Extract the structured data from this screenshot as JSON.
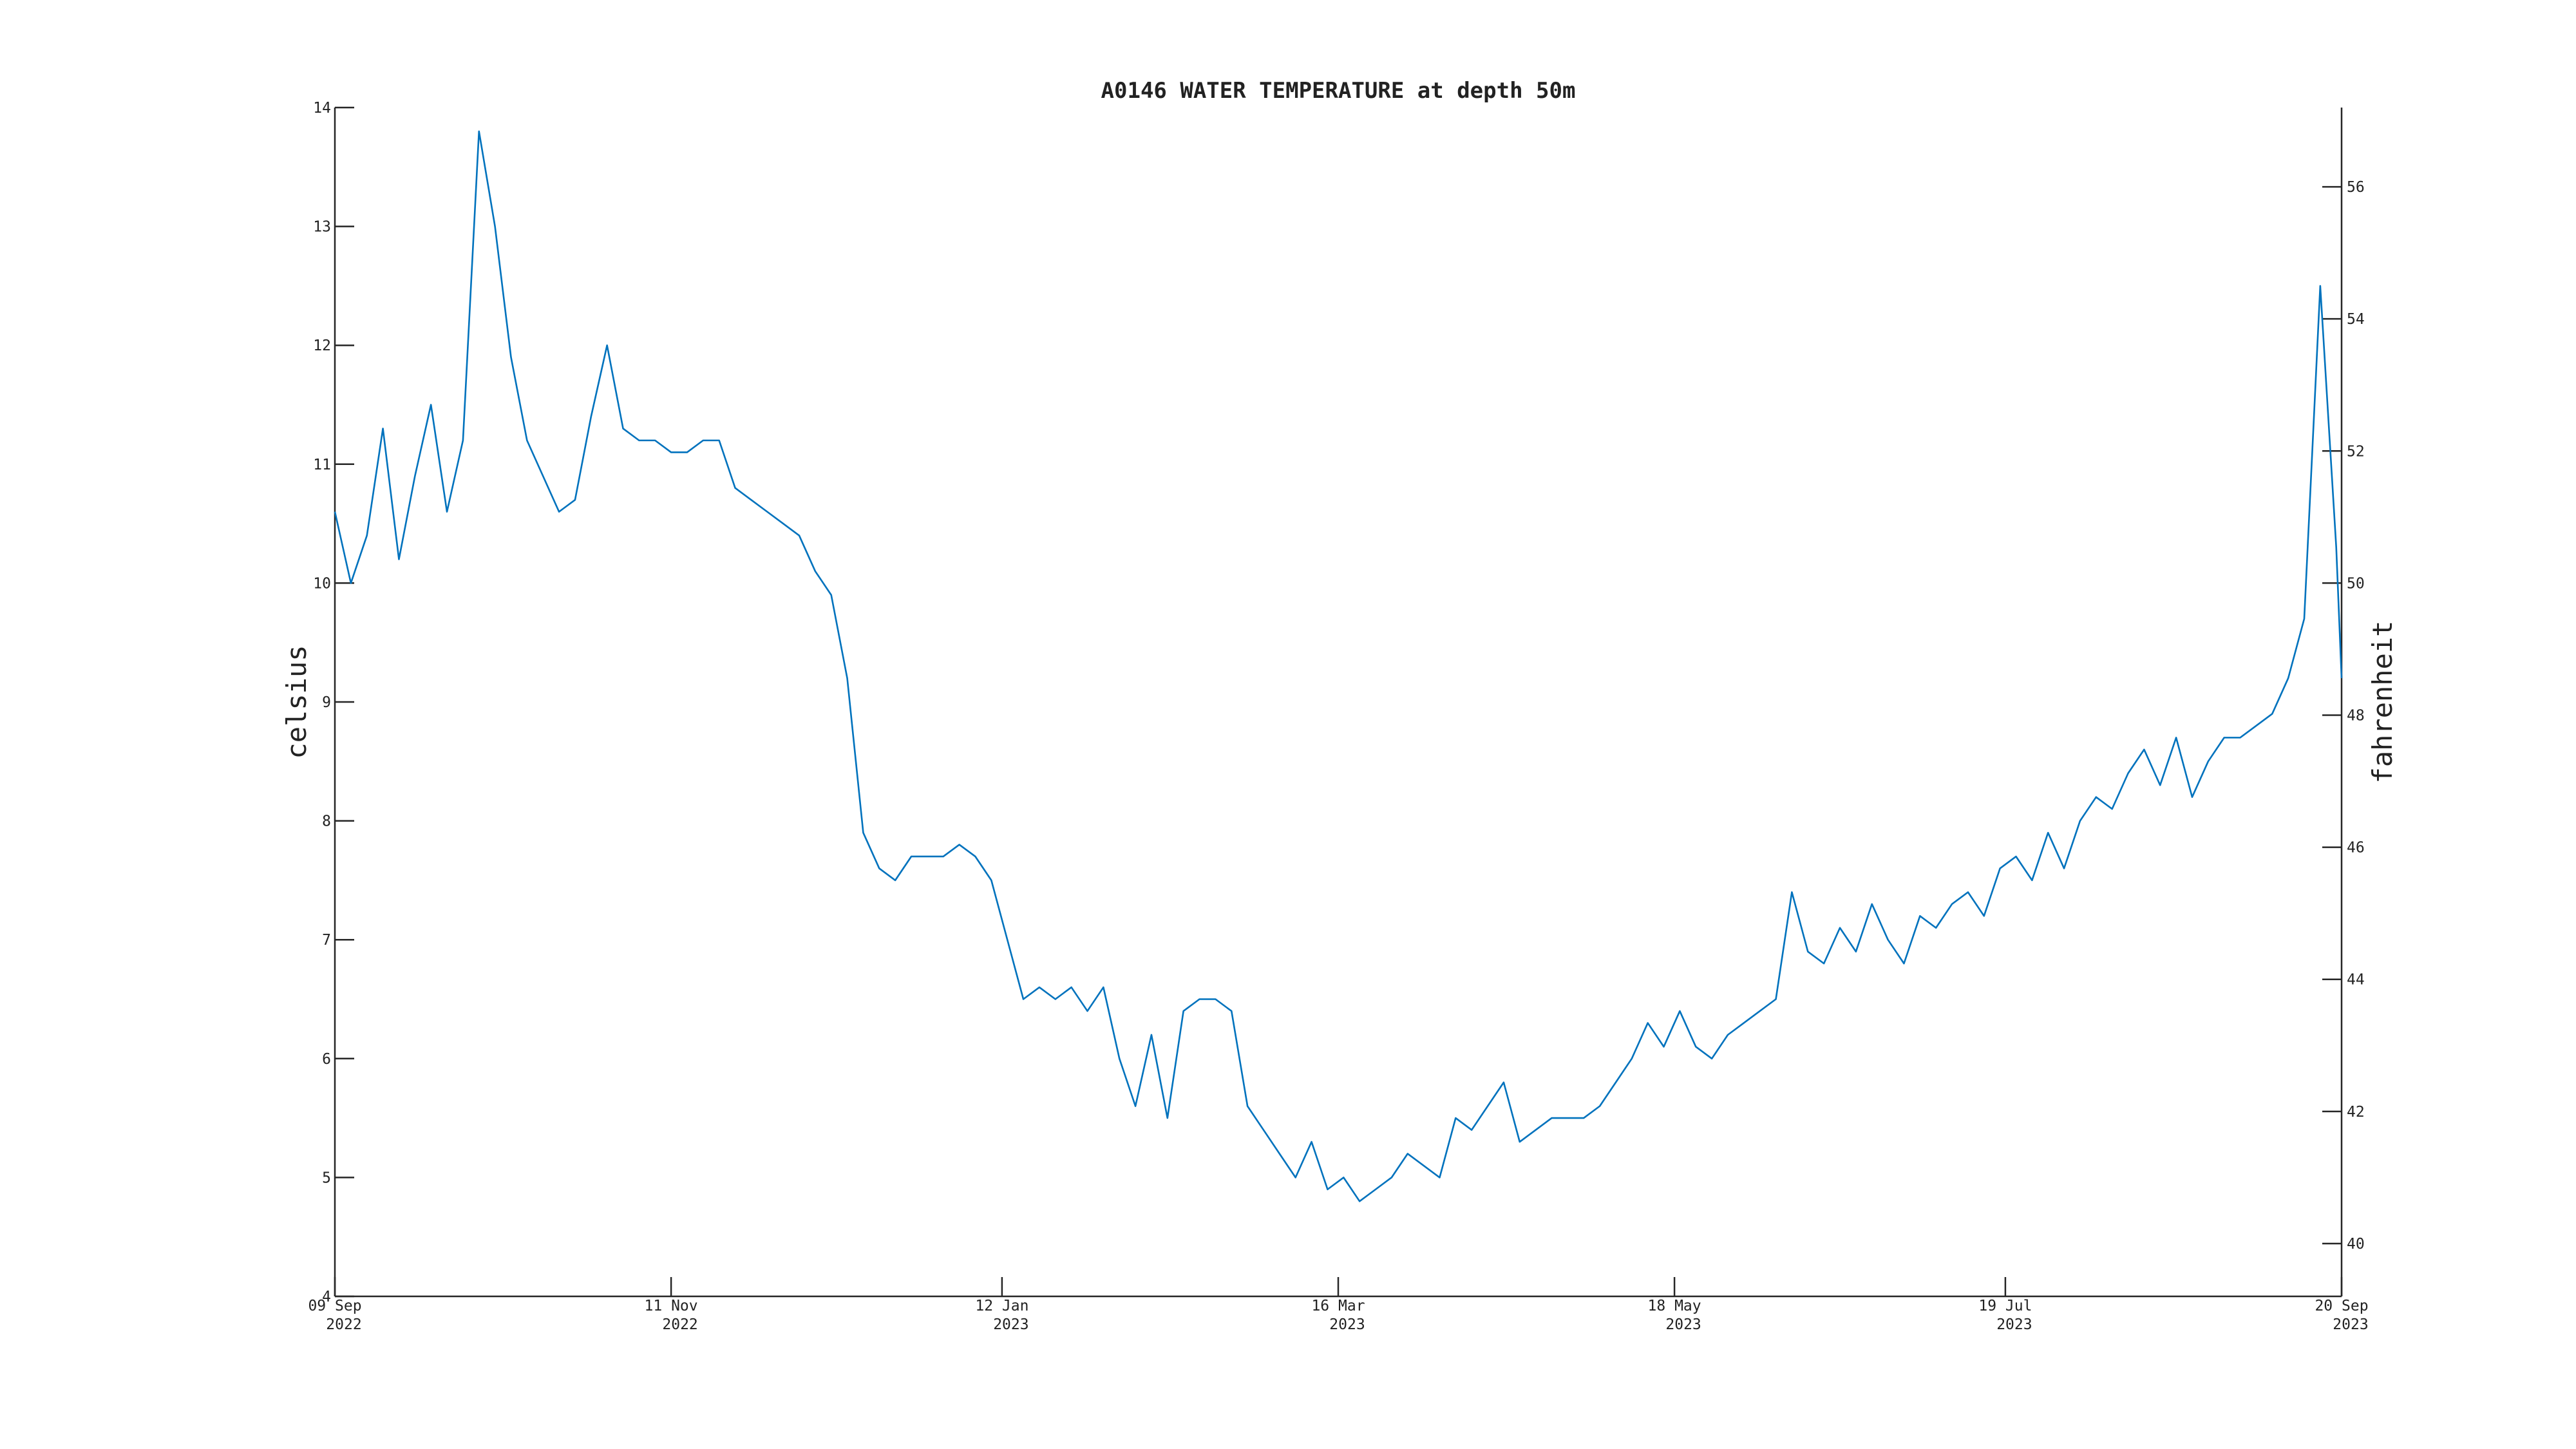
{
  "chart_data": {
    "type": "line",
    "title": "A0146 WATER TEMPERATURE at depth 50m",
    "ylabel": "celsius",
    "y2label": "fahrenheit",
    "xlim": [
      "2022-09-09",
      "2023-09-20"
    ],
    "xticks": [
      {
        "value": "2022-09-09",
        "label": [
          "09 Sep",
          "2022"
        ]
      },
      {
        "value": "2022-11-11",
        "label": [
          "11 Nov",
          "2022"
        ]
      },
      {
        "value": "2023-01-12",
        "label": [
          "12 Jan",
          "2023"
        ]
      },
      {
        "value": "2023-03-16",
        "label": [
          "16 Mar",
          "2023"
        ]
      },
      {
        "value": "2023-05-18",
        "label": [
          "18 May",
          "2023"
        ]
      },
      {
        "value": "2023-07-19",
        "label": [
          "19 Jul",
          "2023"
        ]
      },
      {
        "value": "2023-09-20",
        "label": [
          "20 Sep",
          "2023"
        ]
      }
    ],
    "ylim": [
      4,
      14
    ],
    "yticks": [
      4,
      5,
      6,
      7,
      8,
      9,
      10,
      11,
      12,
      13,
      14
    ],
    "y2lim": [
      39.2,
      57.2
    ],
    "y2ticks": [
      40,
      42,
      44,
      46,
      48,
      50,
      52,
      54,
      56
    ],
    "x": [
      "2022-09-09",
      "2022-09-12",
      "2022-09-15",
      "2022-09-18",
      "2022-09-21",
      "2022-09-24",
      "2022-09-27",
      "2022-09-30",
      "2022-10-03",
      "2022-10-06",
      "2022-10-09",
      "2022-10-12",
      "2022-10-15",
      "2022-10-18",
      "2022-10-21",
      "2022-10-24",
      "2022-10-27",
      "2022-10-30",
      "2022-11-02",
      "2022-11-05",
      "2022-11-08",
      "2022-11-11",
      "2022-11-14",
      "2022-11-17",
      "2022-11-20",
      "2022-11-23",
      "2022-11-26",
      "2022-11-29",
      "2022-12-02",
      "2022-12-05",
      "2022-12-08",
      "2022-12-11",
      "2022-12-14",
      "2022-12-17",
      "2022-12-20",
      "2022-12-23",
      "2022-12-26",
      "2022-12-29",
      "2023-01-01",
      "2023-01-04",
      "2023-01-07",
      "2023-01-10",
      "2023-01-13",
      "2023-01-16",
      "2023-01-19",
      "2023-01-22",
      "2023-01-25",
      "2023-01-28",
      "2023-01-31",
      "2023-02-03",
      "2023-02-06",
      "2023-02-09",
      "2023-02-12",
      "2023-02-15",
      "2023-02-18",
      "2023-02-21",
      "2023-02-24",
      "2023-02-27",
      "2023-03-02",
      "2023-03-05",
      "2023-03-08",
      "2023-03-11",
      "2023-03-14",
      "2023-03-17",
      "2023-03-20",
      "2023-03-23",
      "2023-03-26",
      "2023-03-29",
      "2023-04-01",
      "2023-04-04",
      "2023-04-07",
      "2023-04-10",
      "2023-04-13",
      "2023-04-16",
      "2023-04-19",
      "2023-04-22",
      "2023-04-25",
      "2023-04-28",
      "2023-05-01",
      "2023-05-04",
      "2023-05-07",
      "2023-05-10",
      "2023-05-13",
      "2023-05-16",
      "2023-05-19",
      "2023-05-22",
      "2023-05-25",
      "2023-05-28",
      "2023-05-31",
      "2023-06-03",
      "2023-06-06",
      "2023-06-09",
      "2023-06-12",
      "2023-06-15",
      "2023-06-18",
      "2023-06-21",
      "2023-06-24",
      "2023-06-27",
      "2023-06-30",
      "2023-07-03",
      "2023-07-06",
      "2023-07-09",
      "2023-07-12",
      "2023-07-15",
      "2023-07-18",
      "2023-07-21",
      "2023-07-24",
      "2023-07-27",
      "2023-07-30",
      "2023-08-02",
      "2023-08-05",
      "2023-08-08",
      "2023-08-11",
      "2023-08-14",
      "2023-08-17",
      "2023-08-20",
      "2023-08-23",
      "2023-08-26",
      "2023-08-29",
      "2023-09-01",
      "2023-09-04",
      "2023-09-07",
      "2023-09-10",
      "2023-09-13",
      "2023-09-16",
      "2023-09-19",
      "2023-09-20"
    ],
    "series": [
      {
        "name": "temperature",
        "color": "#0072bd",
        "values": [
          10.6,
          10.0,
          10.4,
          11.3,
          10.2,
          10.9,
          11.5,
          10.6,
          11.2,
          13.8,
          13.0,
          11.9,
          11.2,
          10.9,
          10.6,
          10.7,
          11.4,
          12.0,
          11.3,
          11.2,
          11.2,
          11.1,
          11.1,
          11.2,
          11.2,
          10.8,
          10.7,
          10.6,
          10.5,
          10.4,
          10.1,
          9.9,
          9.2,
          7.9,
          7.6,
          7.5,
          7.7,
          7.7,
          7.7,
          7.8,
          7.7,
          7.5,
          7.0,
          6.5,
          6.6,
          6.5,
          6.6,
          6.4,
          6.6,
          6.0,
          5.6,
          6.2,
          5.5,
          6.4,
          6.5,
          6.5,
          6.4,
          5.6,
          5.4,
          5.2,
          5.0,
          5.3,
          4.9,
          5.0,
          4.8,
          4.9,
          5.0,
          5.2,
          5.1,
          5.0,
          5.5,
          5.4,
          5.6,
          5.8,
          5.3,
          5.4,
          5.5,
          5.5,
          5.5,
          5.6,
          5.8,
          6.0,
          6.3,
          6.1,
          6.4,
          6.1,
          6.0,
          6.2,
          6.3,
          6.4,
          6.5,
          7.4,
          6.9,
          6.8,
          7.1,
          6.9,
          7.3,
          7.0,
          6.8,
          7.2,
          7.1,
          7.3,
          7.4,
          7.2,
          7.6,
          7.7,
          7.5,
          7.9,
          7.6,
          8.0,
          8.2,
          8.1,
          8.4,
          8.6,
          8.3,
          8.7,
          8.2,
          8.5,
          8.7,
          8.7,
          8.8,
          8.9,
          9.2,
          9.7,
          12.5,
          10.3,
          9.2
        ]
      }
    ]
  }
}
